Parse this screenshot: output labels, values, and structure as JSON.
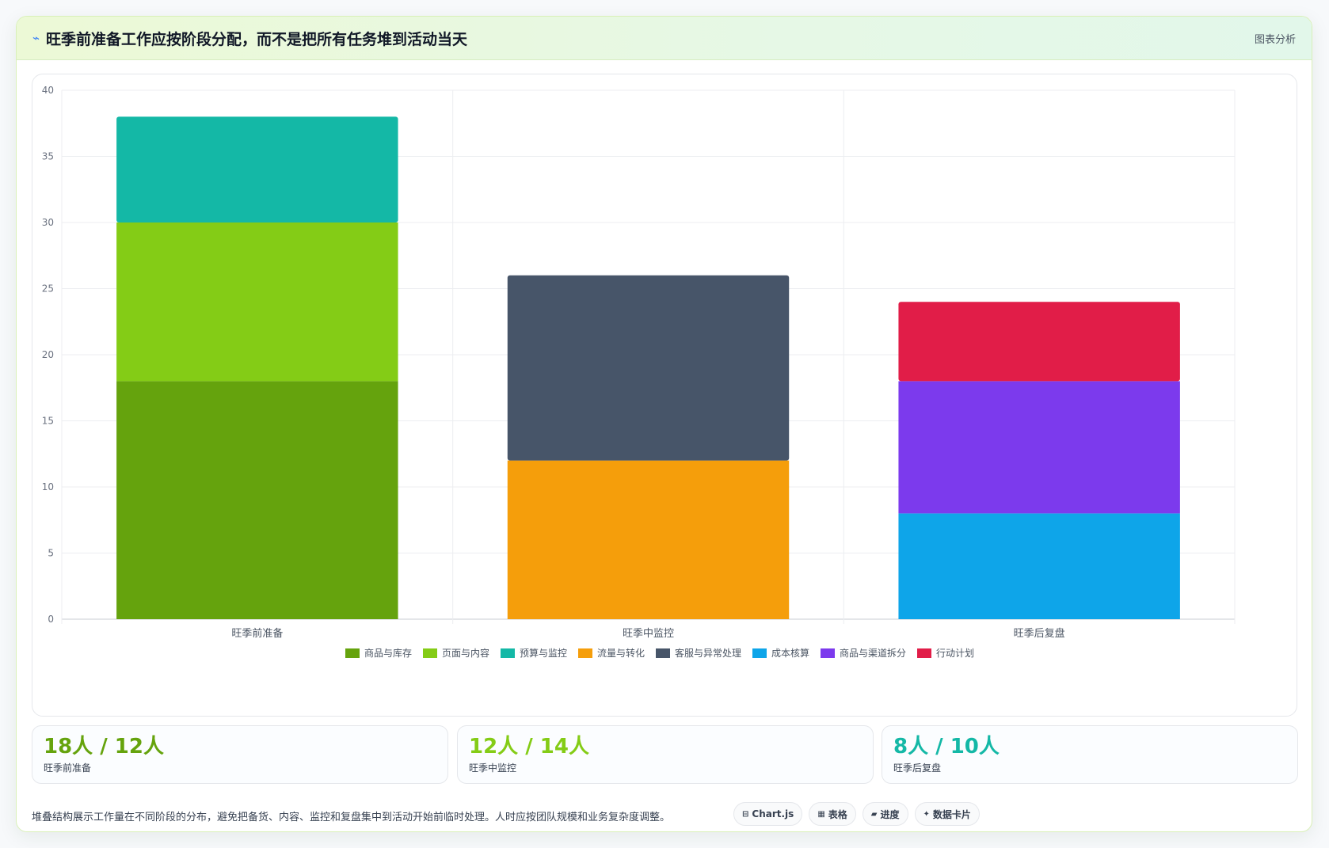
{
  "header": {
    "icon": "trend-icon",
    "title": "旺季前准备工作应按阶段分配，而不是把所有任务堆到活动当天",
    "tag": "图表分析"
  },
  "chart_data": {
    "type": "bar",
    "stacked": true,
    "categories": [
      "旺季前准备",
      "旺季中监控",
      "旺季后复盘"
    ],
    "series": [
      {
        "name": "商品与库存",
        "color": "#65a30d",
        "values": [
          18,
          0,
          0
        ]
      },
      {
        "name": "页面与内容",
        "color": "#84cc16",
        "values": [
          12,
          0,
          0
        ]
      },
      {
        "name": "预算与监控",
        "color": "#14b8a6",
        "values": [
          8,
          0,
          0
        ]
      },
      {
        "name": "流量与转化",
        "color": "#f59e0b",
        "values": [
          0,
          12,
          0
        ]
      },
      {
        "name": "客服与异常处理",
        "color": "#475569",
        "values": [
          0,
          14,
          0
        ]
      },
      {
        "name": "成本核算",
        "color": "#0ea5e9",
        "values": [
          0,
          0,
          8
        ]
      },
      {
        "name": "商品与渠道拆分",
        "color": "#7c3aed",
        "values": [
          0,
          0,
          10
        ]
      },
      {
        "name": "行动计划",
        "color": "#e11d48",
        "values": [
          0,
          0,
          6
        ]
      }
    ],
    "ylim": [
      0,
      40
    ],
    "yticks": [
      0,
      5,
      10,
      15,
      20,
      25,
      30,
      35,
      40
    ],
    "grid": true,
    "legend": "bottom"
  },
  "stats": [
    {
      "value": "18人 / 12人",
      "label": "旺季前准备",
      "color": "#65a30d"
    },
    {
      "value": "12人 / 14人",
      "label": "旺季中监控",
      "color": "#84cc16"
    },
    {
      "value": "8人 / 10人",
      "label": "旺季后复盘",
      "color": "#14b8a6"
    }
  ],
  "footer": {
    "note": "堆叠结构展示工作量在不同阶段的分布，避免把备货、内容、监控和复盘集中到活动开始前临时处理。人时应按团队规模和业务复杂度调整。",
    "chips": [
      {
        "icon": "chart-icon",
        "glyph": "⊟",
        "label": "Chart.js"
      },
      {
        "icon": "table-icon",
        "glyph": "▦",
        "label": "表格"
      },
      {
        "icon": "progress-icon",
        "glyph": "▰",
        "label": "进度"
      },
      {
        "icon": "sparkle-icon",
        "glyph": "✦",
        "label": "数据卡片"
      }
    ]
  }
}
